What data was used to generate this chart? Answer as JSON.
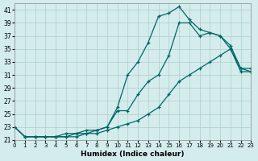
{
  "xlabel": "Humidex (Indice chaleur)",
  "xlim": [
    0,
    23
  ],
  "ylim": [
    21,
    42
  ],
  "yticks": [
    21,
    23,
    25,
    27,
    29,
    31,
    33,
    35,
    37,
    39,
    41
  ],
  "xticks": [
    0,
    1,
    2,
    3,
    4,
    5,
    6,
    7,
    8,
    9,
    10,
    11,
    12,
    13,
    14,
    15,
    16,
    17,
    18,
    19,
    20,
    21,
    22,
    23
  ],
  "background_color": "#d4ecec",
  "grid_color": "#b0cccc",
  "line_color": "#006666",
  "line1_x": [
    0,
    1,
    2,
    3,
    4,
    5,
    6,
    7,
    8,
    9,
    10,
    11,
    12,
    13,
    14,
    15,
    16,
    17,
    18,
    19,
    20,
    21,
    22,
    23
  ],
  "line1_y": [
    23,
    21.5,
    21.5,
    21.5,
    21.5,
    21.5,
    22,
    22,
    22.5,
    23,
    26,
    31,
    33,
    36,
    40,
    40.5,
    41.5,
    39.5,
    38,
    37.5,
    37,
    35.5,
    32,
    32
  ],
  "line2_x": [
    0,
    1,
    2,
    3,
    4,
    5,
    6,
    7,
    8,
    9,
    10,
    11,
    12,
    13,
    14,
    15,
    16,
    17,
    18,
    19,
    20,
    21,
    22,
    23
  ],
  "line2_y": [
    23,
    21.5,
    21.5,
    21.5,
    21.5,
    22,
    22,
    22.5,
    22.5,
    23,
    25.5,
    25.5,
    28,
    30,
    31,
    34,
    39,
    39,
    37,
    37.5,
    37,
    35,
    31.5,
    31.5
  ],
  "line3_x": [
    0,
    1,
    2,
    3,
    4,
    5,
    6,
    7,
    8,
    9,
    10,
    11,
    12,
    13,
    14,
    15,
    16,
    17,
    18,
    19,
    20,
    21,
    22,
    23
  ],
  "line3_y": [
    23,
    21.5,
    21.5,
    21.5,
    21.5,
    21.5,
    21.5,
    22,
    22,
    22.5,
    23,
    23.5,
    24,
    25,
    26,
    28,
    30,
    31,
    32,
    33,
    34,
    35,
    32,
    31.5
  ]
}
